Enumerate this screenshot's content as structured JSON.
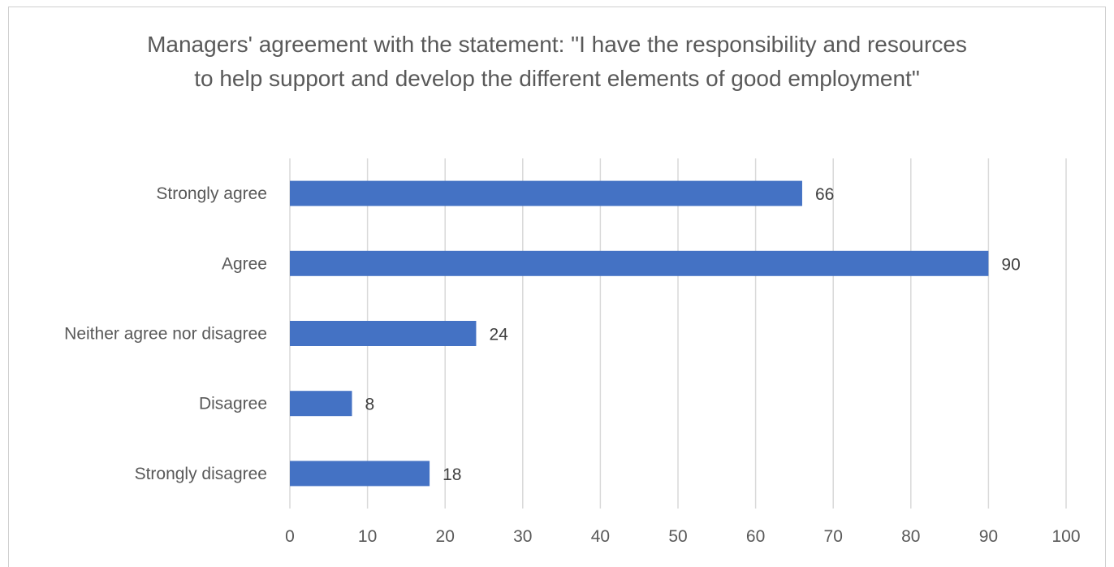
{
  "chart_data": {
    "type": "bar",
    "orientation": "horizontal",
    "title": "Managers' agreement with the statement: \"I have the responsibility and resources to help support and develop the different elements of good employment\"",
    "categories": [
      "Strongly agree",
      "Agree",
      "Neither agree nor disagree",
      "Disagree",
      "Strongly disagree"
    ],
    "values": [
      66,
      90,
      24,
      8,
      18
    ],
    "data_labels": [
      "66",
      "90",
      "24",
      "8",
      "18"
    ],
    "xlim": [
      0,
      100
    ],
    "xticks": [
      0,
      10,
      20,
      30,
      40,
      50,
      60,
      70,
      80,
      90,
      100
    ],
    "xtick_labels": [
      "0",
      "10",
      "20",
      "30",
      "40",
      "50",
      "60",
      "70",
      "80",
      "90",
      "100"
    ],
    "xlabel": "",
    "ylabel": "",
    "grid": true,
    "legend": "none",
    "bar_color": "#4472c4",
    "grid_color": "#d9d9d9"
  }
}
